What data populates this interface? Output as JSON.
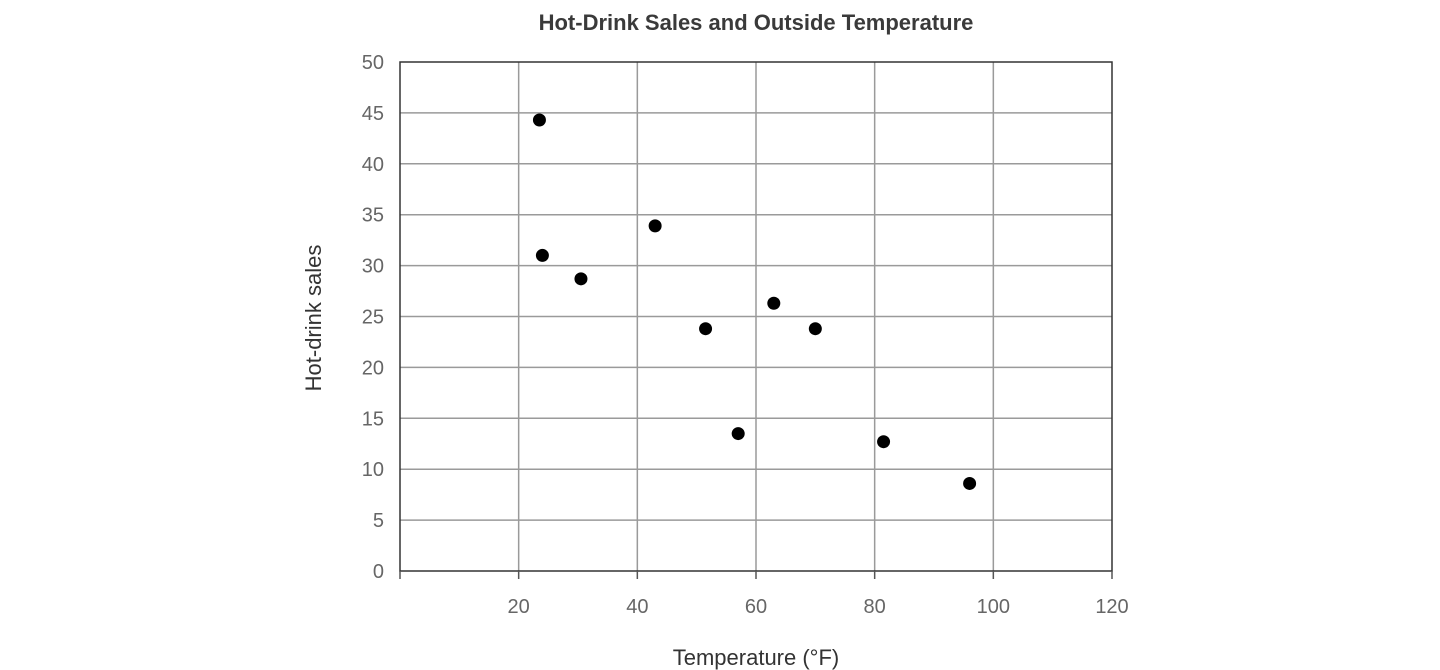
{
  "chart_data": {
    "type": "scatter",
    "title": "Hot-Drink Sales and Outside Temperature",
    "xlabel": "Temperature (°F)",
    "ylabel": "Hot-drink sales",
    "xlim": [
      0,
      120
    ],
    "ylim": [
      0,
      50
    ],
    "x_ticks": [
      20,
      40,
      60,
      80,
      100,
      120
    ],
    "y_ticks": [
      0,
      5,
      10,
      15,
      20,
      25,
      30,
      35,
      40,
      45,
      50
    ],
    "grid": true,
    "series": [
      {
        "points": [
          {
            "x": 23.5,
            "y": 44.3
          },
          {
            "x": 24.0,
            "y": 31.0
          },
          {
            "x": 30.5,
            "y": 28.7
          },
          {
            "x": 43.0,
            "y": 33.9
          },
          {
            "x": 51.5,
            "y": 23.8
          },
          {
            "x": 57.0,
            "y": 13.5
          },
          {
            "x": 63.0,
            "y": 26.3
          },
          {
            "x": 70.0,
            "y": 23.8
          },
          {
            "x": 81.5,
            "y": 12.7
          },
          {
            "x": 96.0,
            "y": 8.6
          }
        ],
        "color": "#000000"
      }
    ]
  }
}
